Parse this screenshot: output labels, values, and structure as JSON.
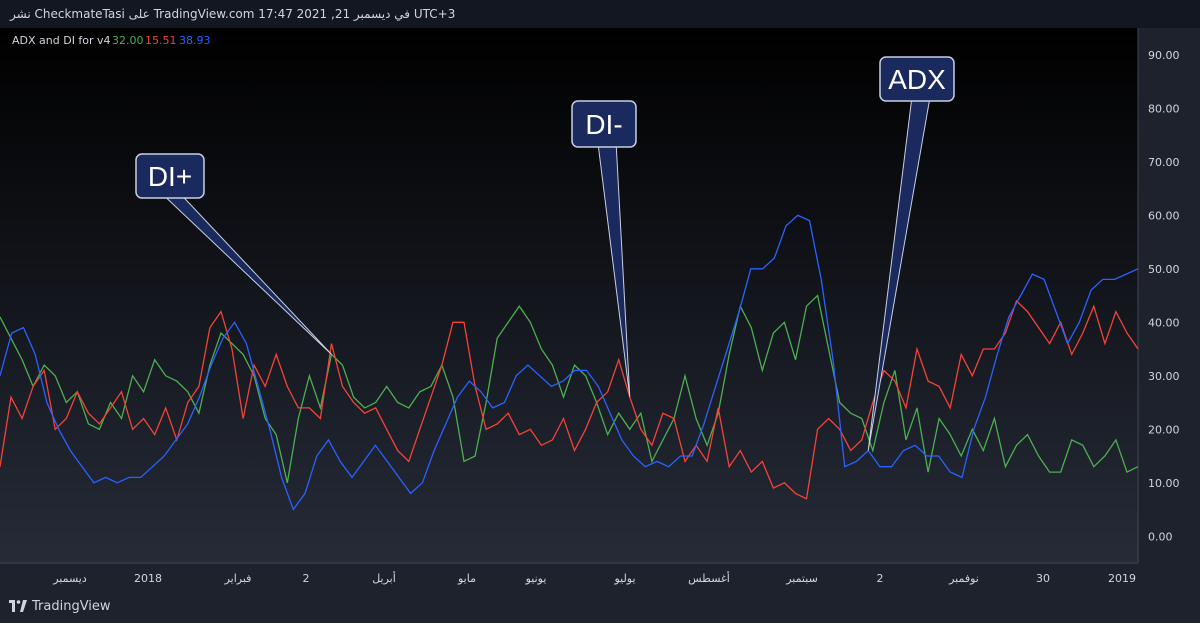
{
  "header": {
    "text": "نشر CheckmateTasi على TradingView.com 17:47 2021 ,21 في ديسمبر UTC+3"
  },
  "footer": {
    "brand": "TradingView"
  },
  "colors": {
    "plus_di": "#4caf50",
    "minus_di": "#f44336",
    "adx": "#2962ff",
    "callout_bg": "#1a2a5e",
    "callout_border": "#c8d0e0"
  },
  "chart_data": {
    "type": "line",
    "title": "ADX and DI for v4",
    "legend_values": [
      "32.00",
      "15.51",
      "38.93"
    ],
    "ylim": [
      -5,
      95
    ],
    "y_ticks": [
      "90.00",
      "80.00",
      "70.00",
      "60.00",
      "50.00",
      "40.00",
      "30.00",
      "20.00",
      "10.00",
      "0.00"
    ],
    "x_ticks": [
      "ديسمبر",
      "2018",
      "فبراير",
      "2",
      "أبريل",
      "مايو",
      "يونيو",
      "يوليو",
      "أغسطس",
      "سبتمبر",
      "2",
      "نوفمبر",
      "30",
      "2019"
    ],
    "annotations": [
      {
        "text": "DI+",
        "series": "DI+",
        "point_index": 30
      },
      {
        "text": "DI-",
        "series": "DI-",
        "point_index": 57
      },
      {
        "text": "ADX",
        "series": "ADX",
        "point_index": 74
      }
    ],
    "series": [
      {
        "name": "DI+",
        "color": "#4caf50",
        "values": [
          41,
          37,
          33,
          28,
          32,
          30,
          25,
          27,
          21,
          20,
          25,
          22,
          30,
          27,
          33,
          30,
          29,
          27,
          23,
          32,
          38,
          36,
          34,
          30,
          22,
          19,
          10,
          22,
          30,
          24,
          34,
          32,
          26,
          24,
          25,
          28,
          25,
          24,
          27,
          28,
          32,
          26,
          14,
          15,
          25,
          37,
          40,
          43,
          40,
          35,
          32,
          26,
          32,
          30,
          25,
          19,
          23,
          20,
          23,
          14,
          18,
          22,
          30,
          22,
          17,
          23,
          34,
          43,
          39,
          31,
          38,
          40,
          33,
          43,
          45,
          35,
          25,
          23,
          22,
          16,
          25,
          31,
          18,
          24,
          12,
          22,
          19,
          15,
          20,
          16,
          22,
          13,
          17,
          19,
          15,
          12,
          12,
          18,
          17,
          13,
          15,
          18,
          12,
          13
        ]
      },
      {
        "name": "DI-",
        "color": "#f44336",
        "values": [
          13,
          26,
          22,
          28,
          31,
          20,
          22,
          27,
          23,
          21,
          24,
          27,
          20,
          22,
          19,
          24,
          18,
          25,
          28,
          39,
          42,
          35,
          22,
          32,
          28,
          34,
          28,
          24,
          24,
          22,
          36,
          28,
          25,
          23,
          24,
          20,
          16,
          14,
          20,
          26,
          32,
          40,
          40,
          28,
          20,
          21,
          23,
          19,
          20,
          17,
          18,
          22,
          16,
          20,
          25,
          27,
          33,
          26,
          20,
          17,
          23,
          22,
          14,
          17,
          14,
          24,
          13,
          16,
          12,
          14,
          9,
          10,
          8,
          7,
          20,
          22,
          20,
          16,
          18,
          25,
          31,
          29,
          24,
          35,
          29,
          28,
          24,
          34,
          30,
          35,
          35,
          38,
          44,
          42,
          39,
          36,
          40,
          34,
          38,
          43,
          36,
          42,
          38,
          35
        ]
      },
      {
        "name": "ADX",
        "color": "#2962ff",
        "values": [
          30,
          38,
          39,
          34,
          25,
          20,
          16,
          13,
          10,
          11,
          10,
          11,
          11,
          13,
          15,
          18,
          21,
          26,
          32,
          37,
          40,
          36,
          28,
          20,
          11,
          5,
          8,
          15,
          18,
          14,
          11,
          14,
          17,
          14,
          11,
          8,
          10,
          16,
          21,
          26,
          29,
          27,
          24,
          25,
          30,
          32,
          30,
          28,
          29,
          31,
          31,
          28,
          23,
          18,
          15,
          13,
          14,
          13,
          15,
          15,
          21,
          28,
          35,
          42,
          50,
          50,
          52,
          58,
          60,
          59,
          48,
          33,
          13,
          14,
          16,
          13,
          13,
          16,
          17,
          15,
          15,
          12,
          11,
          20,
          26,
          34,
          41,
          45,
          49,
          48,
          42,
          36,
          40,
          46,
          48,
          48,
          49,
          50
        ]
      }
    ]
  }
}
